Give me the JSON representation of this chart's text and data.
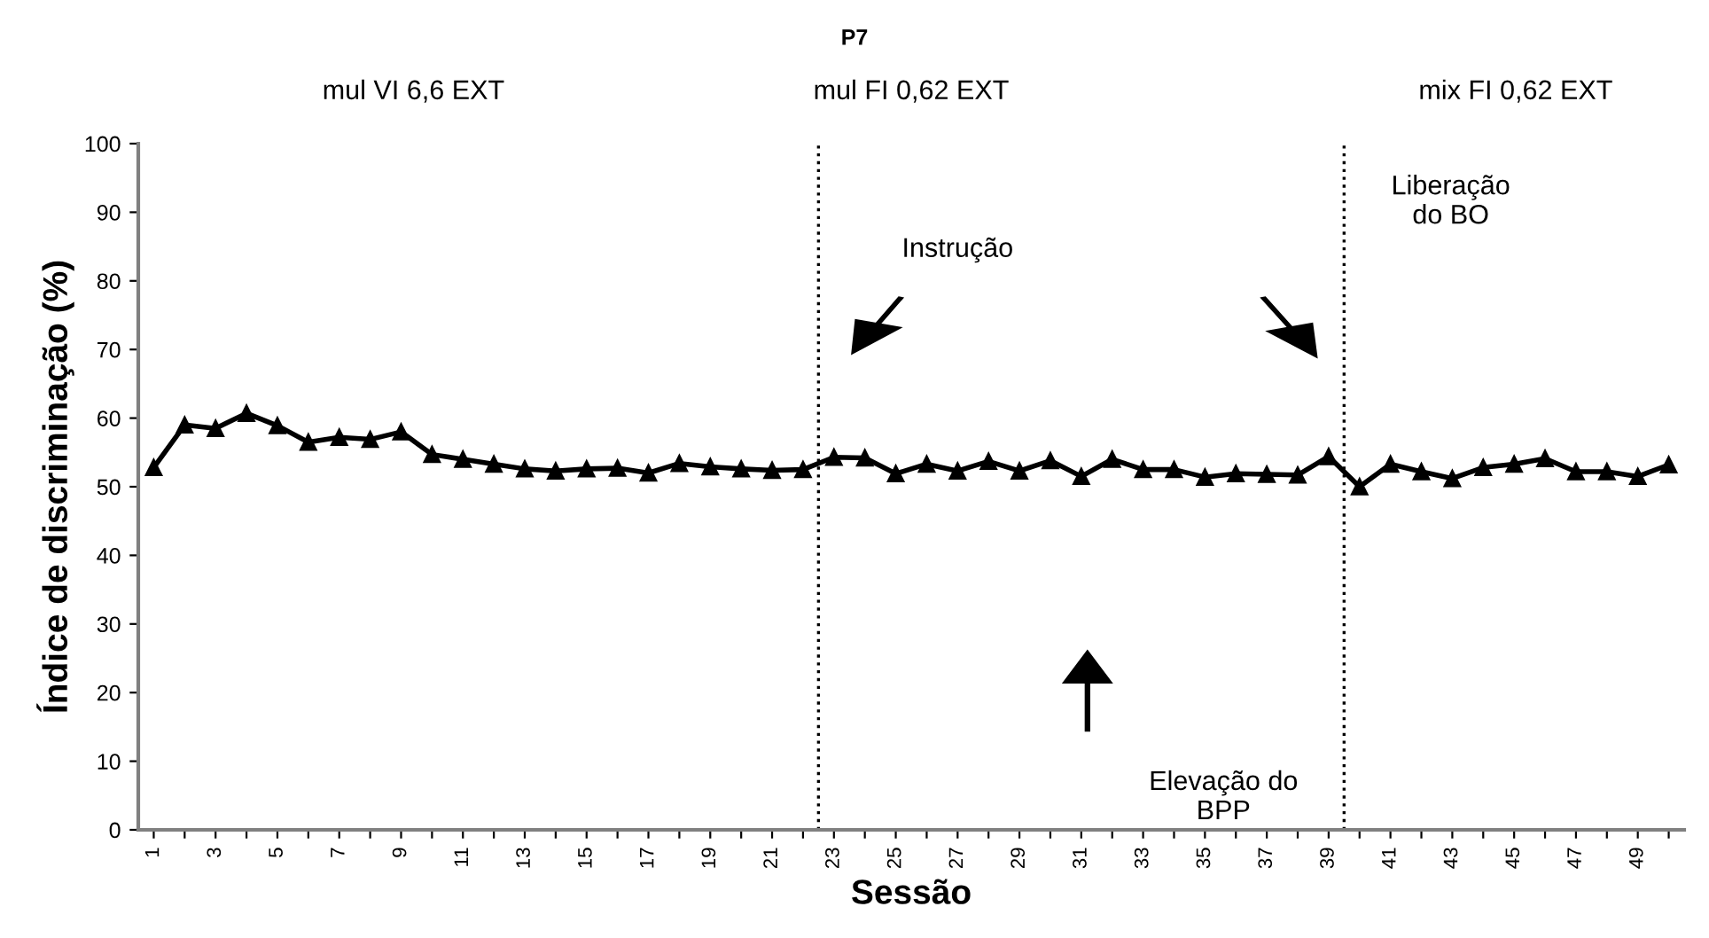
{
  "chart_data": {
    "type": "line",
    "title": "P7",
    "xlabel": "Sessão",
    "ylabel": "Índice de discriminação (%)",
    "x": [
      1,
      2,
      3,
      4,
      5,
      6,
      7,
      8,
      9,
      10,
      11,
      12,
      13,
      14,
      15,
      16,
      17,
      18,
      19,
      20,
      21,
      22,
      23,
      24,
      25,
      26,
      27,
      28,
      29,
      30,
      31,
      32,
      33,
      34,
      35,
      36,
      37,
      38,
      39,
      40,
      41,
      42,
      43,
      44,
      45,
      46,
      47,
      48,
      49,
      50
    ],
    "series": [
      {
        "color": "#000000",
        "values": [
          52.8,
          59,
          58.5,
          60.7,
          58.9,
          56.5,
          57.2,
          56.9,
          58,
          54.7,
          54,
          53.3,
          52.6,
          52.3,
          52.6,
          52.7,
          52,
          53.4,
          52.9,
          52.6,
          52.4,
          52.5,
          54.3,
          54.2,
          51.9,
          53.3,
          52.3,
          53.7,
          52.3,
          53.8,
          51.5,
          54,
          52.5,
          52.5,
          51.4,
          51.9,
          51.8,
          51.7,
          54.4,
          50,
          53.3,
          52.2,
          51.2,
          52.8,
          53.3,
          54.1,
          52.2,
          52.2,
          51.5,
          53.2
        ]
      }
    ],
    "marker": "triangle",
    "line_style": "solid",
    "grid": false,
    "legend": false,
    "xlim": [
      0.5,
      50.5
    ],
    "xticks": [
      1,
      {
        "value": 2,
        "label": null
      },
      3,
      {
        "value": 4,
        "label": null
      },
      5,
      {
        "value": 6,
        "label": null
      },
      7,
      {
        "value": 8,
        "label": null
      },
      9,
      {
        "value": 10,
        "label": null
      },
      11,
      {
        "value": 12,
        "label": null
      },
      13,
      {
        "value": 14,
        "label": null
      },
      15,
      {
        "value": 16,
        "label": null
      },
      17,
      {
        "value": 18,
        "label": null
      },
      19,
      {
        "value": 20,
        "label": null
      },
      21,
      {
        "value": 22,
        "label": null
      },
      23,
      {
        "value": 24,
        "label": null
      },
      25,
      {
        "value": 26,
        "label": null
      },
      27,
      {
        "value": 28,
        "label": null
      },
      29,
      {
        "value": 30,
        "label": null
      },
      31,
      {
        "value": 32,
        "label": null
      },
      33,
      {
        "value": 34,
        "label": null
      },
      35,
      {
        "value": 36,
        "label": null
      },
      37,
      {
        "value": 38,
        "label": null
      },
      39,
      {
        "value": 40,
        "label": null
      },
      41,
      {
        "value": 42,
        "label": null
      },
      43,
      {
        "value": 44,
        "label": null
      },
      45,
      {
        "value": 46,
        "label": null
      },
      47,
      {
        "value": 48,
        "label": null
      },
      49,
      {
        "value": 50,
        "label": null
      }
    ],
    "ylim": [
      0,
      100
    ],
    "yticks": [
      0,
      10,
      20,
      30,
      40,
      50,
      60,
      70,
      80,
      90,
      100
    ],
    "ref_lines": [
      {
        "axis": "x",
        "value": 22.5,
        "color": "#000000",
        "line_style": "dotted"
      },
      {
        "axis": "x",
        "value": 39.5,
        "color": "#000000",
        "line_style": "dotted"
      }
    ],
    "annotations": [
      "mul VI 6,6 EXT",
      "mul FI 0,62 EXT",
      "mix FI 0,62 EXT",
      "Instrução",
      "Liberação\ndo BO",
      "Elevação do\nBPP"
    ]
  }
}
